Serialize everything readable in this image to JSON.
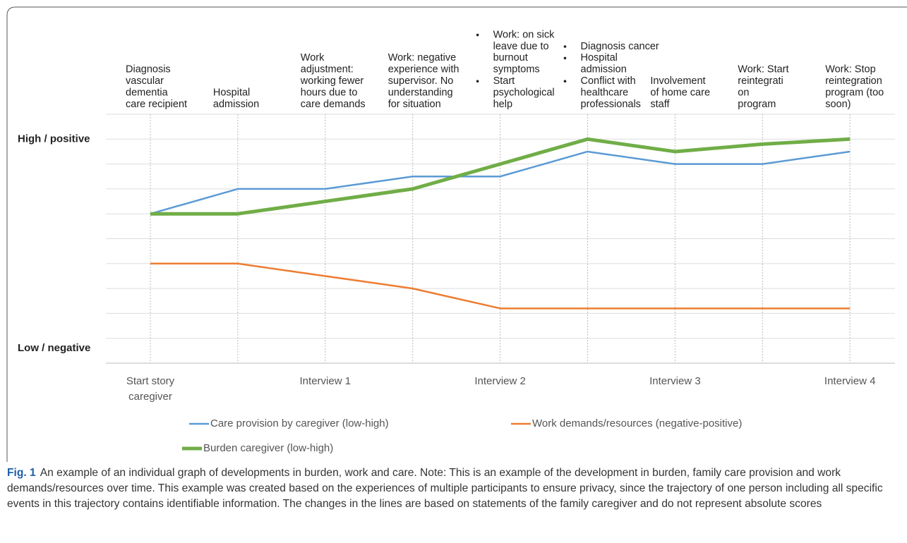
{
  "chart_data": {
    "type": "line",
    "categories": [
      "Start story caregiver",
      null,
      "Interview 1",
      null,
      "Interview 2",
      null,
      "Interview 3",
      null,
      "Interview 4"
    ],
    "series": [
      {
        "name": "Care provision by caregiver (low-high)",
        "color": "#5b9bd5",
        "values": [
          6,
          7,
          7,
          7.5,
          7.5,
          8.5,
          8,
          8,
          8.5
        ]
      },
      {
        "name": "Work demands/resources (negative-positive)",
        "color": "#ed7d31",
        "values": [
          4,
          4,
          3.5,
          3,
          2.2,
          2.2,
          2.2,
          2.2,
          2.2
        ]
      },
      {
        "name": "Burden caregiver (low-high)",
        "color": "#70ad47",
        "values": [
          6,
          6,
          6.5,
          7,
          8,
          9,
          8.5,
          8.8,
          9
        ]
      }
    ],
    "ylim": [
      0,
      10
    ],
    "yticks": [
      {
        "value": 0.6,
        "label": "Low / negative"
      },
      {
        "value": 9,
        "label": "High / positive"
      }
    ],
    "ygrid": [
      0,
      1,
      2,
      3,
      4,
      5,
      6,
      7,
      8,
      9,
      10
    ],
    "annotations": [
      {
        "lines": [
          "Diagnosis",
          "vascular",
          "dementia",
          "care recipient"
        ]
      },
      {
        "lines": [
          "Hospital",
          "admission"
        ]
      },
      {
        "lines": [
          "Work",
          "adjustment:",
          "working fewer",
          "hours due to",
          "care demands"
        ]
      },
      {
        "lines": [
          "Work: negative",
          "experience with",
          "supervisor. No",
          "understanding",
          "for situation"
        ]
      },
      {
        "bullets": [
          [
            "Work: on sick",
            "leave due to",
            "burnout",
            "symptoms"
          ],
          [
            "Start",
            "psychological",
            "help"
          ]
        ]
      },
      {
        "bullets": [
          [
            "Diagnosis cancer"
          ],
          [
            "Hospital",
            "admission"
          ],
          [
            "Conflict with",
            "healthcare",
            "professionals"
          ]
        ]
      },
      {
        "lines": [
          "Involvement",
          "of home care",
          "staff"
        ]
      },
      {
        "lines": [
          "Work: Start",
          "reintegrati",
          "on",
          "program"
        ]
      },
      {
        "lines": [
          "Work: Stop",
          "reintegration",
          "program (too",
          "soon)"
        ]
      }
    ]
  },
  "figure": {
    "label": "Fig. 1",
    "caption": "An example of an individual graph of developments in burden, work and care. Note: This is an example of the development in burden, family care provision and work demands/resources over time. This example was created based on the experiences of multiple participants to ensure privacy, since the trajectory of one person including all specific events in this trajectory contains identifiable information. The changes in the lines are based on statements of the family caregiver and do not represent absolute scores"
  }
}
